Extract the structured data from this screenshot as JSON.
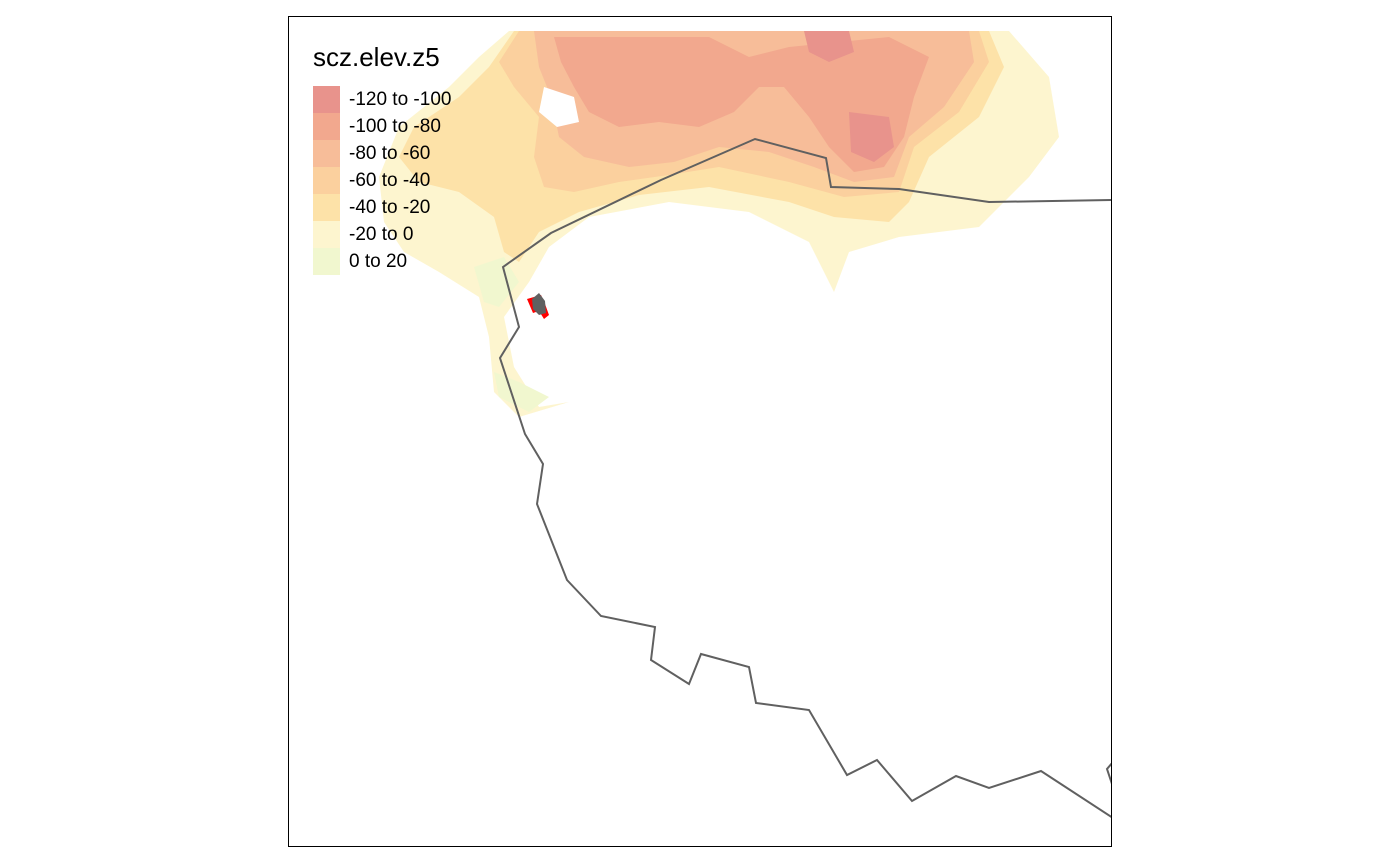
{
  "legend": {
    "title": "scz.elev.z5",
    "classes": [
      {
        "label": "-120 to -100",
        "color": "#e8938c"
      },
      {
        "label": "-100 to -80",
        "color": "#f2a88e"
      },
      {
        "label": "-80 to -60",
        "color": "#f7bd99"
      },
      {
        "label": "-60 to -40",
        "color": "#fbd09e"
      },
      {
        "label": "-40 to -20",
        "color": "#fde2a8"
      },
      {
        "label": "-20 to 0",
        "color": "#fdf5cf"
      },
      {
        "label": "0 to 20",
        "color": "#f1f7cf"
      }
    ]
  },
  "map": {
    "boundary_color": "#606060",
    "feature_colors": [
      "#e8938c",
      "#606060",
      "#ff0000"
    ]
  }
}
